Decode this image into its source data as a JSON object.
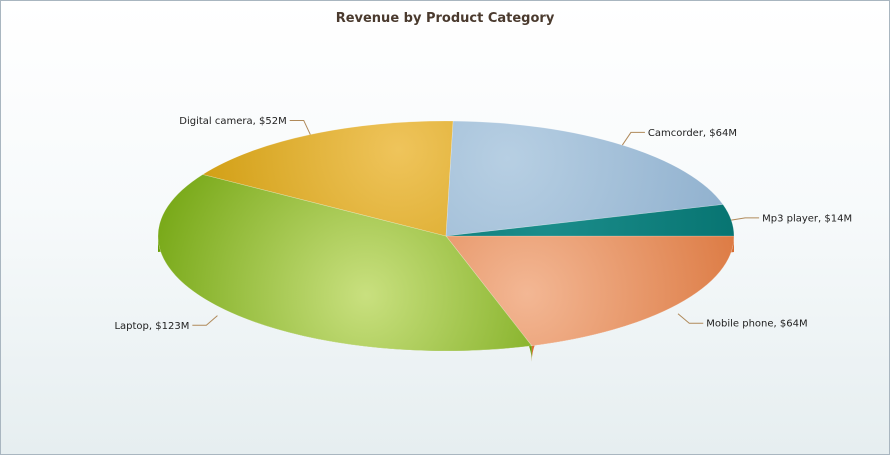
{
  "chart_data": {
    "type": "pie",
    "title": "Revenue by Product Category",
    "slices": [
      {
        "label": "Mobile phone",
        "value": 64,
        "display": "Mobile phone, $64M",
        "color": "#e8895a",
        "color_light": "#f3b794",
        "color_dark": "#d86f34"
      },
      {
        "label": "Laptop",
        "value": 123,
        "display": "Laptop, $123M",
        "color": "#93bf3a",
        "color_light": "#c9e07f",
        "color_dark": "#6a9f06"
      },
      {
        "label": "Digital camera",
        "value": 52,
        "display": "Digital camera, $52M",
        "color": "#dba820",
        "color_light": "#efc45b",
        "color_dark": "#c99400"
      },
      {
        "label": "Camcorder",
        "value": 64,
        "display": "Camcorder, $64M",
        "color": "#9ab9d5",
        "color_light": "#b7cfe3",
        "color_dark": "#8aaccb"
      },
      {
        "label": "Mp3 player",
        "value": 14,
        "display": "Mp3 player, $14M",
        "color": "#0f7c7a",
        "color_light": "#1b8d8b",
        "color_dark": "#006b68"
      }
    ],
    "style": "3d",
    "legend": "none"
  }
}
